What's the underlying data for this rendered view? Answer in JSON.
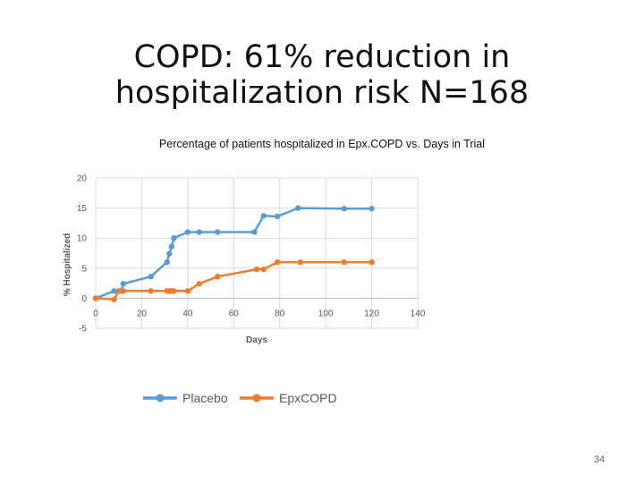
{
  "slide": {
    "title": "COPD: 61% reduction in hospitalization risk N=168",
    "page_number": "34"
  },
  "chart_data": {
    "type": "line",
    "title": "Percentage of patients hospitalized in Epx.COPD vs. Days in Trial",
    "xlabel": "Days",
    "ylabel": "% Hospitalized",
    "xlim": [
      0,
      140
    ],
    "ylim": [
      -5,
      20
    ],
    "xticks": [
      0,
      20,
      40,
      60,
      80,
      100,
      120,
      140
    ],
    "yticks": [
      -5,
      0,
      5,
      10,
      15,
      20
    ],
    "grid": true,
    "legend_position": "bottom",
    "series": [
      {
        "name": "Placebo",
        "color": "#5b9bd5",
        "points": [
          [
            0,
            0
          ],
          [
            8,
            1.2
          ],
          [
            11,
            1.2
          ],
          [
            12,
            2.4
          ],
          [
            24,
            3.6
          ],
          [
            31,
            6
          ],
          [
            32,
            7.4
          ],
          [
            33,
            8.6
          ],
          [
            34,
            10
          ],
          [
            40,
            11
          ],
          [
            45,
            11
          ],
          [
            53,
            11
          ],
          [
            69,
            11
          ],
          [
            73,
            13.7
          ],
          [
            79,
            13.6
          ],
          [
            88,
            15
          ],
          [
            108,
            14.9
          ],
          [
            120,
            14.9
          ]
        ]
      },
      {
        "name": "EpxCOPD",
        "color": "#ed7d31",
        "points": [
          [
            0,
            0
          ],
          [
            8,
            -0.2
          ],
          [
            10,
            1.2
          ],
          [
            12,
            1.2
          ],
          [
            24,
            1.2
          ],
          [
            31,
            1.2
          ],
          [
            32,
            1.2
          ],
          [
            33,
            1.2
          ],
          [
            34,
            1.2
          ],
          [
            40,
            1.2
          ],
          [
            45,
            2.4
          ],
          [
            53,
            3.6
          ],
          [
            70,
            4.8
          ],
          [
            73,
            4.8
          ],
          [
            79,
            6
          ],
          [
            89,
            6
          ],
          [
            108,
            6
          ],
          [
            120,
            6
          ]
        ]
      }
    ]
  }
}
